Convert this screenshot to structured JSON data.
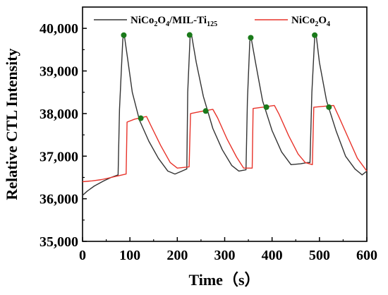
{
  "chart_data": {
    "type": "line",
    "xlabel": "Time（s）",
    "ylabel": "Relative CTL Intensity",
    "xlim": [
      0,
      600
    ],
    "ylim": [
      35000,
      40500
    ],
    "xticks": [
      0,
      100,
      200,
      300,
      400,
      500,
      600
    ],
    "yticks": [
      35000,
      36000,
      37000,
      38000,
      39000,
      40000
    ],
    "xtick_labels": [
      "0",
      "100",
      "200",
      "300",
      "400",
      "500",
      "600"
    ],
    "ytick_labels": [
      "35,000",
      "36,000",
      "37,000",
      "38,000",
      "39,000",
      "40,000"
    ],
    "legend_placement": "top",
    "series": [
      {
        "name": "NiCo2O4/MIL-Ti125",
        "color": "#333333",
        "x": [
          0,
          10,
          25,
          45,
          60,
          75,
          78,
          85,
          88,
          95,
          105,
          120,
          140,
          160,
          180,
          195,
          210,
          220,
          222,
          227,
          230,
          240,
          255,
          275,
          295,
          315,
          330,
          345,
          348,
          353,
          356,
          365,
          380,
          400,
          420,
          440,
          460,
          475,
          480,
          484,
          490,
          493,
          500,
          515,
          535,
          555,
          575,
          590,
          600
        ],
        "y": [
          36080,
          36180,
          36300,
          36420,
          36500,
          36560,
          38100,
          39750,
          39850,
          39300,
          38500,
          37850,
          37350,
          36950,
          36650,
          36580,
          36650,
          36700,
          38500,
          39820,
          39850,
          39200,
          38400,
          37650,
          37150,
          36780,
          36650,
          36680,
          38300,
          39700,
          39770,
          39200,
          38300,
          37600,
          37100,
          36800,
          36820,
          36850,
          36850,
          38500,
          39800,
          39850,
          39200,
          38300,
          37600,
          37000,
          36700,
          36560,
          36650
        ]
      },
      {
        "name": "NiCo2O4",
        "color": "#e8332a",
        "x": [
          0,
          20,
          40,
          60,
          80,
          92,
          94,
          110,
          135,
          145,
          165,
          185,
          200,
          225,
          228,
          250,
          275,
          285,
          305,
          325,
          340,
          358,
          360,
          380,
          405,
          415,
          435,
          455,
          470,
          485,
          488,
          510,
          530,
          540,
          560,
          580,
          600
        ],
        "y": [
          36400,
          36420,
          36450,
          36500,
          36550,
          36580,
          37800,
          37870,
          37930,
          37700,
          37250,
          36850,
          36720,
          36750,
          38000,
          38050,
          38100,
          37900,
          37400,
          36980,
          36720,
          36720,
          38120,
          38150,
          38190,
          37980,
          37480,
          37050,
          36850,
          36800,
          38150,
          38170,
          38190,
          37950,
          37450,
          36950,
          36650
        ]
      }
    ],
    "markers": {
      "color": "#1a7a1a",
      "points": [
        {
          "x": 87,
          "y": 39840
        },
        {
          "x": 123,
          "y": 37890
        },
        {
          "x": 226,
          "y": 39845
        },
        {
          "x": 260,
          "y": 38060
        },
        {
          "x": 355,
          "y": 39780
        },
        {
          "x": 388,
          "y": 38150
        },
        {
          "x": 490,
          "y": 39840
        },
        {
          "x": 520,
          "y": 38150
        }
      ]
    }
  }
}
